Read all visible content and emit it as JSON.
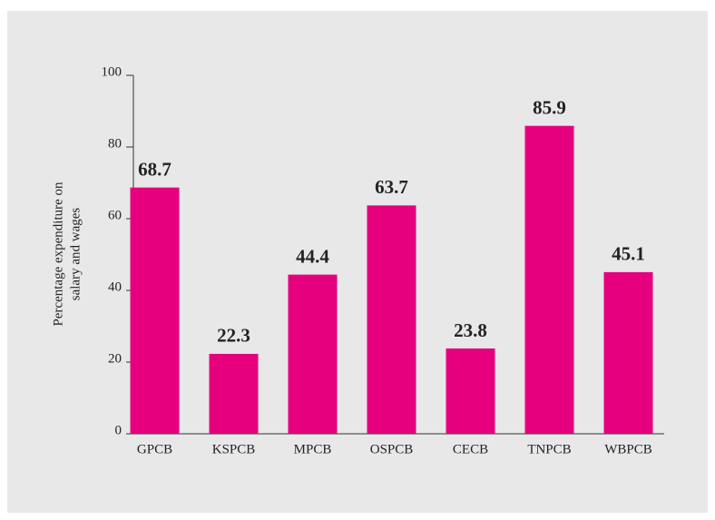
{
  "chart_data": {
    "type": "bar",
    "ylabel": [
      "Percentage expenditure on",
      "salary and wages"
    ],
    "categories": [
      "GPCB",
      "KSPCB",
      "MPCB",
      "OSPCB",
      "CECB",
      "TNPCB",
      "WBPCB"
    ],
    "values": [
      68.7,
      22.3,
      44.4,
      63.7,
      23.8,
      85.9,
      45.1
    ],
    "color": "#e6007e",
    "ylim": [
      0,
      100
    ],
    "yticks": [
      0,
      20,
      40,
      60,
      80,
      100
    ],
    "grid": false
  }
}
